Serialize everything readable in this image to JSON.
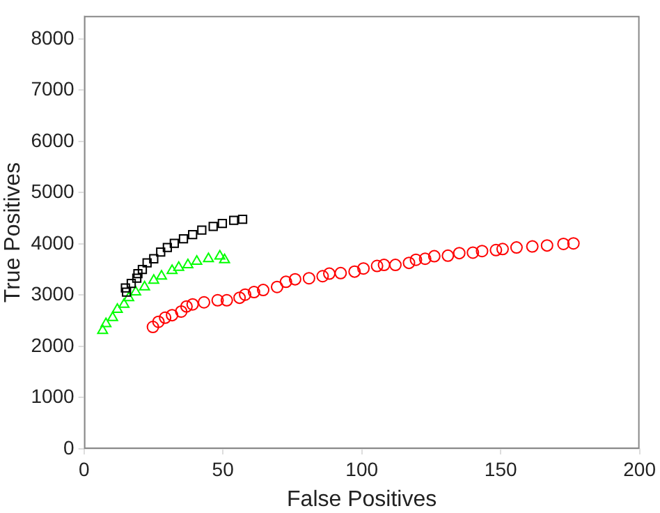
{
  "chart_data": {
    "type": "scatter",
    "xlabel": "False Positives",
    "ylabel": "True Positives",
    "xlim": [
      0,
      200
    ],
    "xticks": [
      0,
      50,
      100,
      150,
      200
    ],
    "ylim": [
      0,
      8450
    ],
    "yticks": [
      0,
      1000,
      2000,
      3000,
      4000,
      5000,
      6000,
      7000,
      8000
    ],
    "grid": false,
    "legend": false,
    "series": [
      {
        "color": "#ff0000",
        "marker": "circle",
        "x": [
          24.8,
          26.8,
          29.2,
          31.7,
          35,
          36.9,
          39.1,
          43.2,
          48.1,
          51.4,
          56,
          58,
          61.2,
          64.5,
          69.5,
          72.7,
          76,
          81,
          85.9,
          88.3,
          92.4,
          97.4,
          100.6,
          105.5,
          108,
          112.1,
          117,
          119.5,
          122.8,
          126.1,
          131,
          135.1,
          140,
          143.3,
          148.3,
          150.7,
          155.7,
          161.4,
          166.7,
          172.6,
          176.2
        ],
        "values": [
          2380,
          2480,
          2560,
          2610,
          2680,
          2780,
          2820,
          2860,
          2900,
          2900,
          2950,
          3010,
          3060,
          3100,
          3160,
          3260,
          3310,
          3330,
          3370,
          3420,
          3430,
          3460,
          3520,
          3570,
          3590,
          3590,
          3630,
          3690,
          3710,
          3760,
          3770,
          3820,
          3830,
          3860,
          3880,
          3900,
          3930,
          3950,
          3970,
          4000,
          4010
        ]
      },
      {
        "color": "#000000",
        "marker": "square",
        "x": [
          15.3,
          14.9,
          17,
          19,
          19.4,
          21,
          22.7,
          25.1,
          27.6,
          30,
          32.5,
          35.8,
          39.1,
          42.4,
          46.5,
          49.8,
          53.9,
          57.1
        ],
        "values": [
          3060,
          3140,
          3230,
          3330,
          3420,
          3500,
          3630,
          3710,
          3840,
          3930,
          4010,
          4100,
          4180,
          4270,
          4340,
          4400,
          4460,
          4480
        ]
      },
      {
        "color": "#00ff00",
        "marker": "triangle",
        "x": [
          6.7,
          7.9,
          10.3,
          12,
          14.4,
          16.1,
          18.6,
          21.8,
          25.1,
          27.9,
          31.7,
          34.1,
          37.4,
          40.6,
          44.8,
          48.9,
          50.6
        ],
        "values": [
          2310,
          2440,
          2560,
          2720,
          2820,
          2950,
          3060,
          3160,
          3290,
          3370,
          3480,
          3540,
          3590,
          3660,
          3710,
          3760,
          3690
        ]
      }
    ]
  }
}
